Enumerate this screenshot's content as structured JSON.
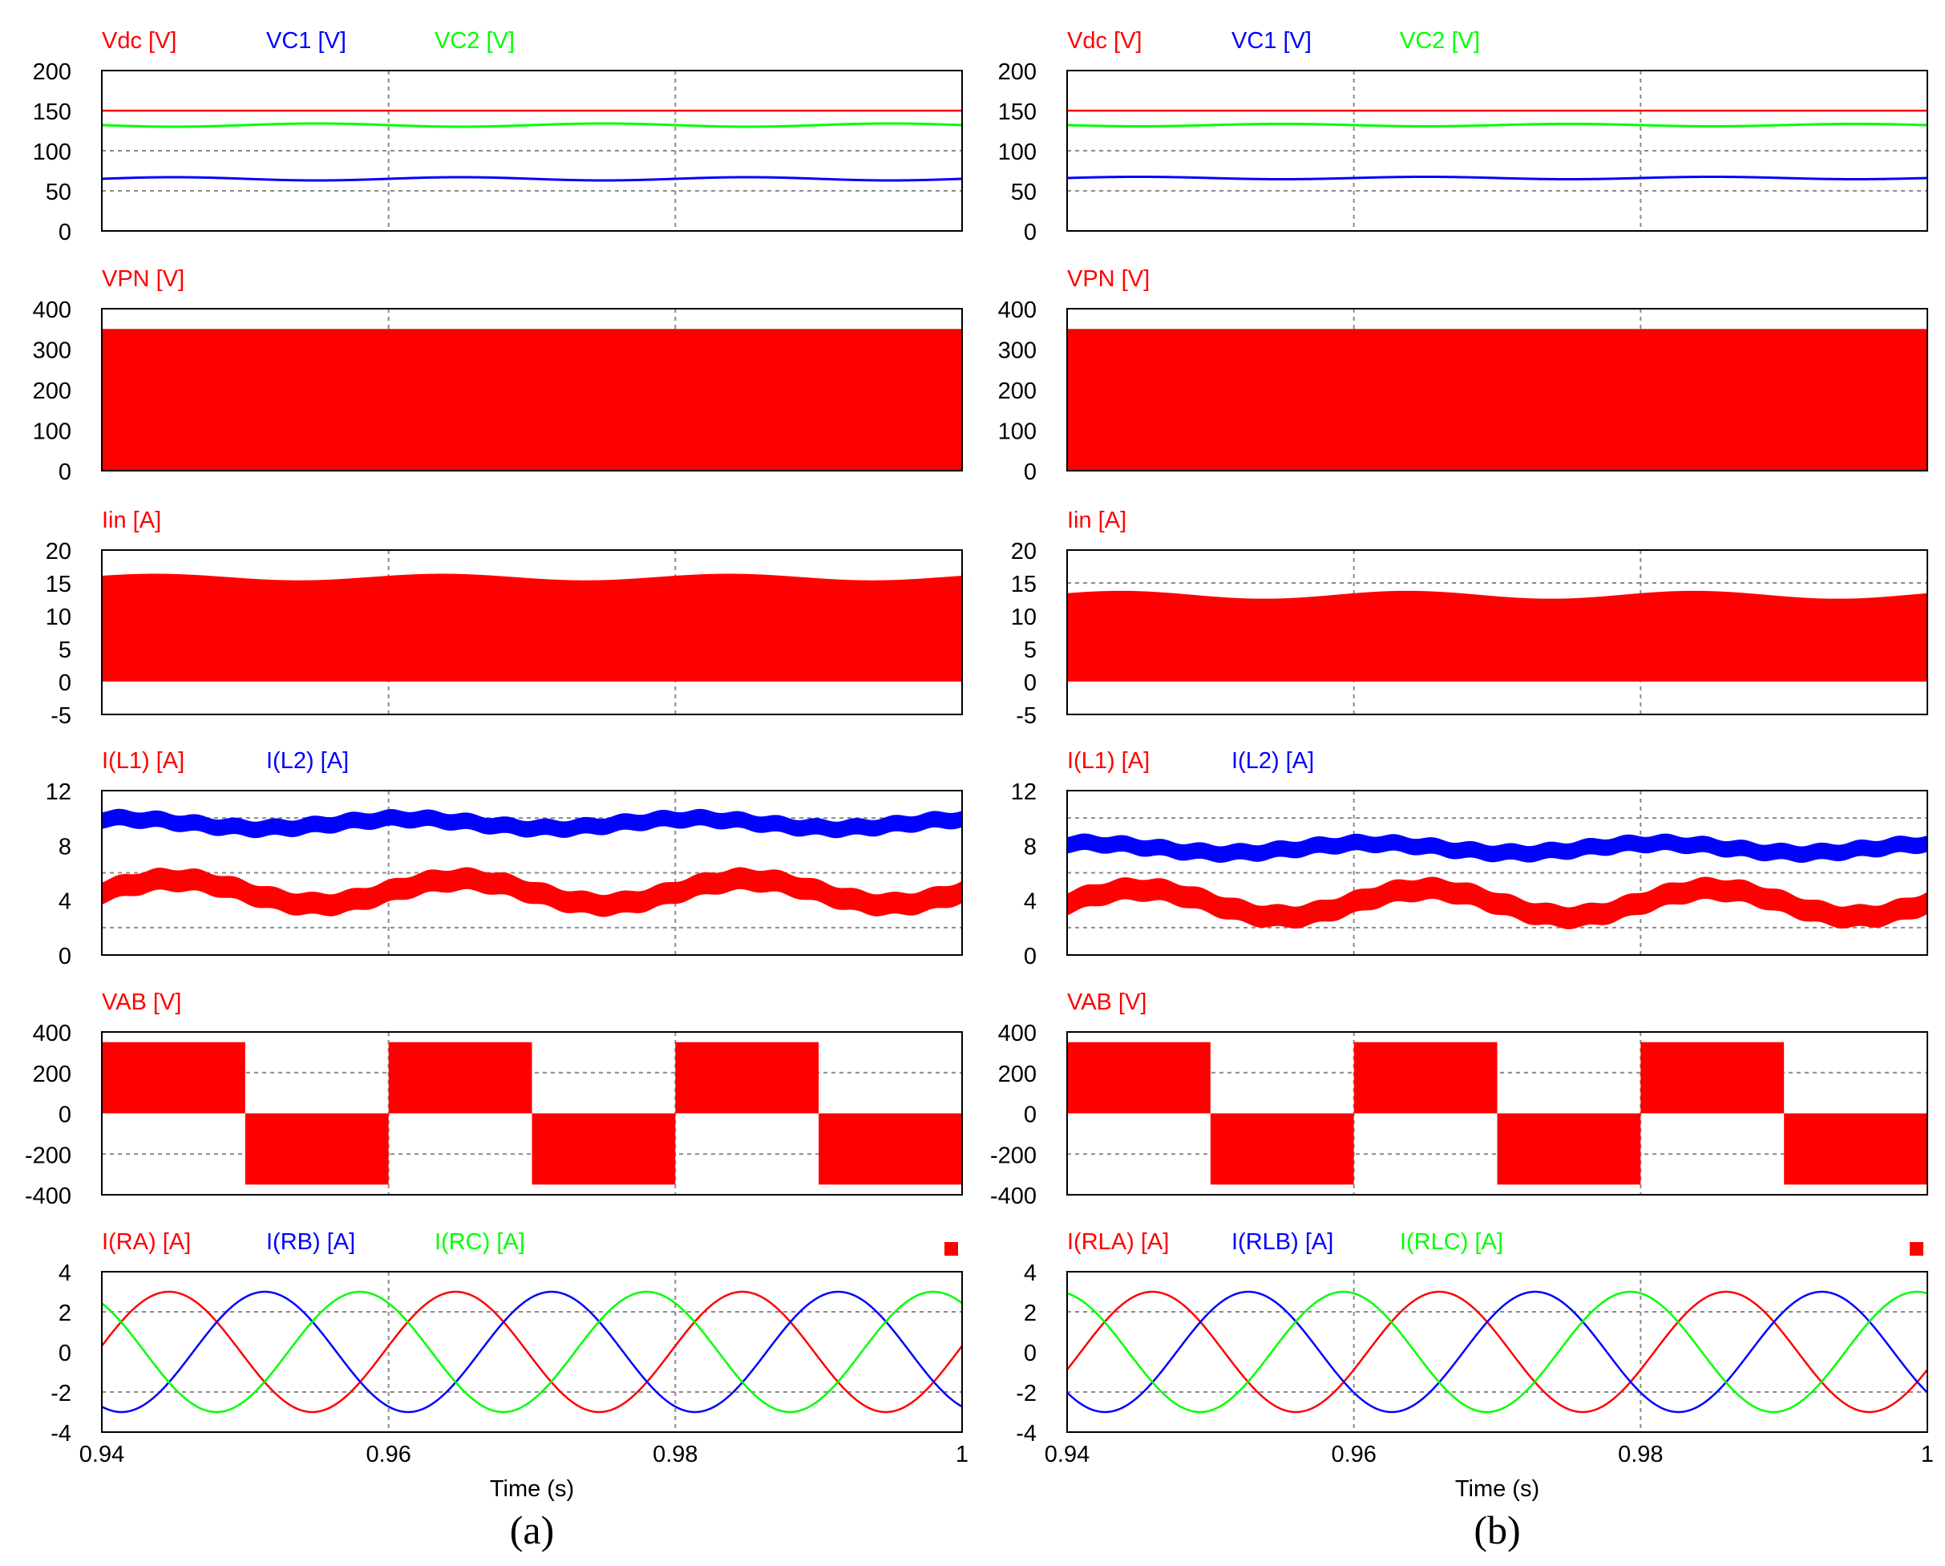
{
  "figure": {
    "xlabel": "Time (s)",
    "x_range": [
      0.94,
      1.0
    ],
    "x_ticks": [
      0.94,
      0.96,
      0.98,
      1.0
    ],
    "x_tick_labels": [
      "0.94",
      "0.96",
      "0.98",
      "1"
    ],
    "colors": {
      "red": "#ff0000",
      "blue": "#0000ff",
      "green": "#00ff00",
      "frame": "#000000",
      "grid": "#8a8a8a"
    }
  },
  "chart_data": [
    {
      "type": "line",
      "column": "a",
      "caption": "(a)",
      "legend_marker": true,
      "rows": [
        {
          "key": "vdc",
          "ylim": [
            0,
            200
          ],
          "y_ticks": [
            0,
            50,
            100,
            150,
            200
          ],
          "y_grid": [
            50,
            100,
            150
          ],
          "series": [
            {
              "name": "Vdc [V]",
              "color": "red",
              "kind": "const",
              "value": 150
            },
            {
              "name": "VC1 [V]",
              "color": "blue",
              "kind": "ripple",
              "mean": 65,
              "amp": 2,
              "freq": 50,
              "phase": 0
            },
            {
              "name": "VC2 [V]",
              "color": "green",
              "kind": "ripple",
              "mean": 132,
              "amp": 2,
              "freq": 50,
              "phase": 3.14
            }
          ]
        },
        {
          "key": "vpn",
          "ylim": [
            0,
            400
          ],
          "y_ticks": [
            0,
            100,
            200,
            300,
            400
          ],
          "y_grid": [],
          "series": [
            {
              "name": "VPN [V]",
              "color": "red",
              "kind": "band",
              "lower": 0,
              "upper": 350,
              "amp": 0,
              "freq": 50
            }
          ]
        },
        {
          "key": "iin",
          "ylim": [
            -5,
            20
          ],
          "y_ticks": [
            -5,
            0,
            5,
            10,
            15,
            20
          ],
          "y_grid": [],
          "series": [
            {
              "name": "Iin [A]",
              "color": "red",
              "kind": "band",
              "lower": 0,
              "upper": 15.9,
              "amp": 0.5,
              "freq": 50
            }
          ]
        },
        {
          "key": "il",
          "ylim": [
            0,
            12
          ],
          "y_ticks": [
            0,
            4,
            8,
            12
          ],
          "y_grid": [
            2,
            6,
            10
          ],
          "series": [
            {
              "name": "I(L1) [A]",
              "color": "red",
              "kind": "thick",
              "mean": 4.6,
              "amp": 0.9,
              "freq": 50,
              "phase": 0,
              "width": 1.6
            },
            {
              "name": "I(L2) [A]",
              "color": "blue",
              "kind": "thick",
              "mean": 9.6,
              "amp": 0.35,
              "freq": 50,
              "phase": 1.2,
              "width": 1.2
            }
          ]
        },
        {
          "key": "vab",
          "ylim": [
            -400,
            400
          ],
          "y_ticks": [
            -400,
            -200,
            0,
            200,
            400
          ],
          "y_grid": [
            -200,
            200
          ],
          "series": [
            {
              "name": "VAB [V]",
              "color": "red",
              "kind": "square",
              "amp": 350,
              "freq": 50,
              "start": 0.94
            }
          ]
        },
        {
          "key": "ir",
          "ylim": [
            -4,
            4
          ],
          "y_ticks": [
            -4,
            -2,
            0,
            2,
            4
          ],
          "y_grid": [
            -2,
            2
          ],
          "series": [
            {
              "name": "I(RA) [A]",
              "color": "red",
              "kind": "sine",
              "amp": 3,
              "freq": 50,
              "phase": 0.1
            },
            {
              "name": "I(RB) [A]",
              "color": "blue",
              "kind": "sine",
              "amp": 3,
              "freq": 50,
              "phase": -2.0
            },
            {
              "name": "I(RC) [A]",
              "color": "green",
              "kind": "sine",
              "amp": 3,
              "freq": 50,
              "phase": 2.2
            }
          ]
        }
      ]
    },
    {
      "type": "line",
      "column": "b",
      "caption": "(b)",
      "legend_marker": true,
      "rows": [
        {
          "key": "vdc",
          "ylim": [
            0,
            200
          ],
          "y_ticks": [
            0,
            50,
            100,
            150,
            200
          ],
          "y_grid": [
            50,
            100,
            150
          ],
          "series": [
            {
              "name": "Vdc [V]",
              "color": "red",
              "kind": "const",
              "value": 150
            },
            {
              "name": "VC1 [V]",
              "color": "blue",
              "kind": "ripple",
              "mean": 66,
              "amp": 1.5,
              "freq": 50,
              "phase": 0
            },
            {
              "name": "VC2 [V]",
              "color": "green",
              "kind": "ripple",
              "mean": 132,
              "amp": 1.5,
              "freq": 50,
              "phase": 3.14
            }
          ]
        },
        {
          "key": "vpn",
          "ylim": [
            0,
            400
          ],
          "y_ticks": [
            0,
            100,
            200,
            300,
            400
          ],
          "y_grid": [],
          "series": [
            {
              "name": "VPN [V]",
              "color": "red",
              "kind": "band",
              "lower": 0,
              "upper": 350,
              "amp": 0,
              "freq": 50
            }
          ]
        },
        {
          "key": "iin",
          "ylim": [
            -5,
            20
          ],
          "y_ticks": [
            -5,
            0,
            5,
            10,
            15,
            20
          ],
          "y_grid": [
            15
          ],
          "series": [
            {
              "name": "Iin [A]",
              "color": "red",
              "kind": "band",
              "lower": 0,
              "upper": 13.2,
              "amp": 0.6,
              "freq": 50
            }
          ]
        },
        {
          "key": "il",
          "ylim": [
            0,
            12
          ],
          "y_ticks": [
            0,
            4,
            8,
            12
          ],
          "y_grid": [
            2,
            6,
            10
          ],
          "series": [
            {
              "name": "I(L1) [A]",
              "color": "red",
              "kind": "thick",
              "mean": 3.8,
              "amp": 1.0,
              "freq": 50,
              "phase": 0,
              "width": 1.6
            },
            {
              "name": "I(L2) [A]",
              "color": "blue",
              "kind": "thick",
              "mean": 7.8,
              "amp": 0.35,
              "freq": 50,
              "phase": 1.2,
              "width": 1.2
            }
          ]
        },
        {
          "key": "vab",
          "ylim": [
            -400,
            400
          ],
          "y_ticks": [
            -400,
            -200,
            0,
            200,
            400
          ],
          "y_grid": [
            -200,
            200
          ],
          "series": [
            {
              "name": "VAB [V]",
              "color": "red",
              "kind": "square",
              "amp": 350,
              "freq": 50,
              "start": 0.94
            }
          ]
        },
        {
          "key": "ir",
          "ylim": [
            -4,
            4
          ],
          "y_ticks": [
            -4,
            -2,
            0,
            2,
            4
          ],
          "y_grid": [
            -2,
            2
          ],
          "series": [
            {
              "name": "I(RLA) [A]",
              "color": "red",
              "kind": "sine",
              "amp": 3,
              "freq": 50,
              "phase": -0.3
            },
            {
              "name": "I(RLB) [A]",
              "color": "blue",
              "kind": "sine",
              "amp": 3,
              "freq": 50,
              "phase": -2.4
            },
            {
              "name": "I(RLC) [A]",
              "color": "green",
              "kind": "sine",
              "amp": 3,
              "freq": 50,
              "phase": 1.8
            }
          ]
        }
      ]
    }
  ]
}
